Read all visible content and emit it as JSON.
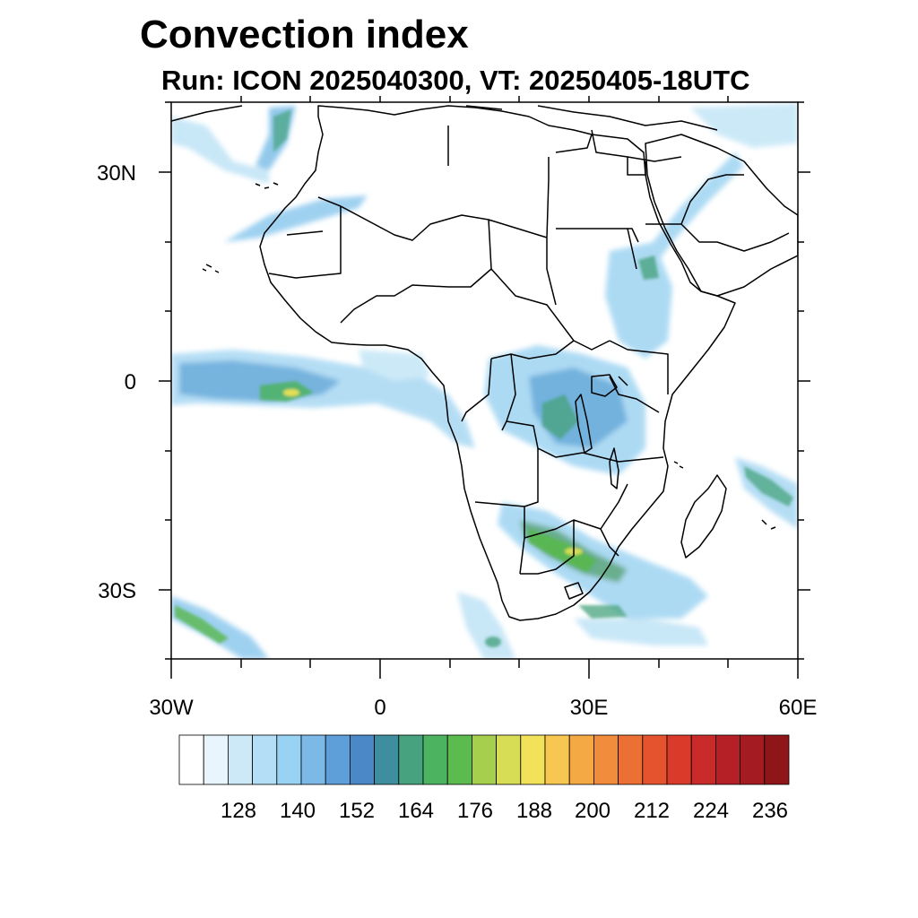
{
  "title": "Convection index",
  "subtitle": "Run: ICON 2025040300,  VT: 20250405-18UTC",
  "map": {
    "region": "Africa",
    "lon_range": [
      -30,
      60
    ],
    "lat_range": [
      -40,
      40
    ],
    "lat_tick_labels": [
      {
        "lat": 30,
        "label": "30N"
      },
      {
        "lat": 0,
        "label": "0"
      },
      {
        "lat": -30,
        "label": "30S"
      }
    ],
    "lon_tick_labels": [
      {
        "lon": -30,
        "label": "30W"
      },
      {
        "lon": 0,
        "label": "0"
      },
      {
        "lon": 30,
        "label": "30E"
      },
      {
        "lon": 60,
        "label": "60E"
      }
    ]
  },
  "colorbar": {
    "labels": [
      "128",
      "140",
      "152",
      "164",
      "176",
      "188",
      "200",
      "212",
      "224",
      "236"
    ],
    "colors": [
      "#ffffff",
      "#e8f5fc",
      "#cde9f8",
      "#b4def6",
      "#98d3f3",
      "#7db9e6",
      "#5f9fd9",
      "#4a88c7",
      "#3f8ea0",
      "#47a37f",
      "#4cb361",
      "#5cbb4f",
      "#a6cf4d",
      "#d7dd55",
      "#f1e25a",
      "#f8c752",
      "#f4a944",
      "#f08c3b",
      "#ec6f33",
      "#e4532d",
      "#d93a2a",
      "#c92a2a",
      "#b51f26",
      "#a41b21",
      "#8e1618"
    ]
  },
  "colors": {
    "light_blue": "#a9d9f3",
    "mid_blue": "#6fb3e2",
    "teal": "#44a58b",
    "green": "#58b84e",
    "yellow": "#e4e055"
  }
}
